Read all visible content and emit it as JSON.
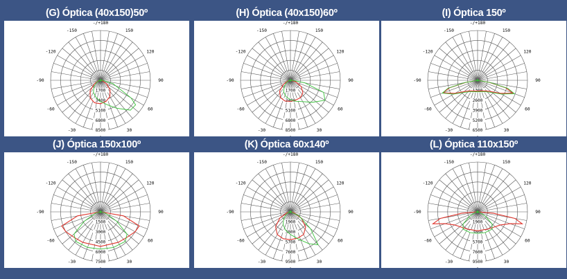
{
  "colors": {
    "background": "#3c5585",
    "plot_bg": "#ffffff",
    "red_series": "#e0342c",
    "green_series": "#39c23a"
  },
  "chart_data": [
    {
      "type": "polar",
      "title": "(G) Óptica (40x150)50º",
      "angle_labels": [
        "-/+180",
        "150",
        "120",
        "90",
        "60",
        "30",
        "0",
        "-30",
        "-60",
        "-90",
        "-120",
        "-150"
      ],
      "radial_ticks": [
        "1700",
        "3400",
        "5100",
        "6800",
        "8500"
      ],
      "rmax": 8500,
      "series": [
        {
          "color": "red",
          "points": [
            [
              -90,
              0
            ],
            [
              -75,
              400
            ],
            [
              -60,
              1200
            ],
            [
              -45,
              2500
            ],
            [
              -30,
              3500
            ],
            [
              -15,
              3950
            ],
            [
              0,
              4000
            ],
            [
              15,
              3700
            ],
            [
              30,
              3200
            ],
            [
              45,
              2300
            ],
            [
              60,
              1200
            ],
            [
              75,
              400
            ],
            [
              90,
              0
            ]
          ]
        },
        {
          "color": "green",
          "points": [
            [
              -90,
              0
            ],
            [
              -75,
              300
            ],
            [
              -60,
              800
            ],
            [
              -45,
              1600
            ],
            [
              -30,
              2400
            ],
            [
              -15,
              3000
            ],
            [
              0,
              3600
            ],
            [
              15,
              4300
            ],
            [
              30,
              5500
            ],
            [
              45,
              7200
            ],
            [
              55,
              7300
            ],
            [
              60,
              6000
            ],
            [
              75,
              2200
            ],
            [
              90,
              300
            ]
          ]
        }
      ]
    },
    {
      "type": "polar",
      "title": "(H) Óptica (40x150)60º",
      "angle_labels": [
        "-/+180",
        "150",
        "120",
        "90",
        "60",
        "30",
        "0",
        "-30",
        "-60",
        "-90",
        "-120",
        "-150"
      ],
      "radial_ticks": [
        "1700",
        "3400",
        "5100",
        "6800",
        "8500"
      ],
      "rmax": 8500,
      "series": [
        {
          "color": "red",
          "points": [
            [
              -90,
              0
            ],
            [
              -75,
              500
            ],
            [
              -60,
              1400
            ],
            [
              -45,
              2600
            ],
            [
              -30,
              3400
            ],
            [
              -15,
              3650
            ],
            [
              0,
              3600
            ],
            [
              15,
              3500
            ],
            [
              30,
              3400
            ],
            [
              45,
              3000
            ],
            [
              60,
              2100
            ],
            [
              75,
              900
            ],
            [
              90,
              100
            ]
          ]
        },
        {
          "color": "green",
          "points": [
            [
              -90,
              0
            ],
            [
              -75,
              300
            ],
            [
              -60,
              800
            ],
            [
              -45,
              1500
            ],
            [
              -30,
              2300
            ],
            [
              -15,
              2900
            ],
            [
              0,
              3300
            ],
            [
              15,
              3700
            ],
            [
              30,
              4200
            ],
            [
              45,
              5300
            ],
            [
              60,
              6800
            ],
            [
              70,
              6000
            ],
            [
              80,
              2500
            ],
            [
              90,
              300
            ]
          ]
        }
      ]
    },
    {
      "type": "polar",
      "title": "(I) Óptica 150º",
      "angle_labels": [
        "-/+180",
        "150",
        "120",
        "90",
        "60",
        "30",
        "0",
        "-30",
        "-60",
        "-90",
        "-120",
        "-150"
      ],
      "radial_ticks": [
        "1300",
        "2600",
        "3900",
        "5200",
        "6500"
      ],
      "rmax": 6500,
      "series": [
        {
          "color": "red",
          "points": [
            [
              -90,
              0
            ],
            [
              -80,
              1500
            ],
            [
              -75,
              3800
            ],
            [
              -70,
              4800
            ],
            [
              -60,
              3400
            ],
            [
              -45,
              2000
            ],
            [
              -30,
              1600
            ],
            [
              0,
              1400
            ],
            [
              30,
              1600
            ],
            [
              45,
              2000
            ],
            [
              60,
              3400
            ],
            [
              70,
              4900
            ],
            [
              75,
              3800
            ],
            [
              80,
              1500
            ],
            [
              90,
              0
            ]
          ]
        },
        {
          "color": "green",
          "points": [
            [
              -90,
              0
            ],
            [
              -80,
              1700
            ],
            [
              -75,
              4000
            ],
            [
              -70,
              4900
            ],
            [
              -60,
              3600
            ],
            [
              -45,
              2200
            ],
            [
              -30,
              1700
            ],
            [
              0,
              1500
            ],
            [
              30,
              1700
            ],
            [
              45,
              2200
            ],
            [
              60,
              3600
            ],
            [
              70,
              5100
            ],
            [
              75,
              4100
            ],
            [
              80,
              1700
            ],
            [
              90,
              0
            ]
          ]
        }
      ]
    },
    {
      "type": "polar",
      "title": "(J) Óptica 150x100º",
      "angle_labels": [
        "-/+180",
        "150",
        "120",
        "90",
        "60",
        "30",
        "0",
        "-30",
        "-60",
        "-90",
        "-120",
        "-150"
      ],
      "radial_ticks": [
        "1500",
        "3000",
        "4500",
        "6000",
        "7500"
      ],
      "rmax": 7500,
      "series": [
        {
          "color": "red",
          "points": [
            [
              -90,
              0
            ],
            [
              -80,
              3500
            ],
            [
              -70,
              6200
            ],
            [
              -60,
              6000
            ],
            [
              -45,
              5500
            ],
            [
              -30,
              5300
            ],
            [
              0,
              5200
            ],
            [
              30,
              5300
            ],
            [
              45,
              5500
            ],
            [
              60,
              6000
            ],
            [
              70,
              6200
            ],
            [
              80,
              3500
            ],
            [
              90,
              0
            ]
          ]
        },
        {
          "color": "green",
          "points": [
            [
              -90,
              0
            ],
            [
              -75,
              800
            ],
            [
              -60,
              2800
            ],
            [
              -50,
              5200
            ],
            [
              -40,
              5800
            ],
            [
              -20,
              5700
            ],
            [
              0,
              5600
            ],
            [
              20,
              5700
            ],
            [
              40,
              5800
            ],
            [
              50,
              5200
            ],
            [
              60,
              2800
            ],
            [
              75,
              800
            ],
            [
              90,
              0
            ]
          ]
        }
      ]
    },
    {
      "type": "polar",
      "title": "(K) Óptica 60x140º",
      "angle_labels": [
        "-/+180",
        "150",
        "120",
        "90",
        "60",
        "30",
        "0",
        "-30",
        "-60",
        "-90",
        "-120",
        "-150"
      ],
      "radial_ticks": [
        "1900",
        "3800",
        "5700",
        "7600",
        "9500"
      ],
      "rmax": 9500,
      "series": [
        {
          "color": "red",
          "points": [
            [
              -90,
              0
            ],
            [
              -75,
              700
            ],
            [
              -60,
              2300
            ],
            [
              -45,
              4000
            ],
            [
              -30,
              5000
            ],
            [
              -15,
              5300
            ],
            [
              0,
              5300
            ],
            [
              15,
              5200
            ],
            [
              30,
              5000
            ],
            [
              45,
              4100
            ],
            [
              60,
              2400
            ],
            [
              75,
              700
            ],
            [
              90,
              0
            ]
          ]
        },
        {
          "color": "green",
          "points": [
            [
              -90,
              0
            ],
            [
              -75,
              300
            ],
            [
              -60,
              900
            ],
            [
              -45,
              1800
            ],
            [
              -30,
              2800
            ],
            [
              -15,
              3600
            ],
            [
              0,
              4300
            ],
            [
              15,
              5300
            ],
            [
              30,
              7000
            ],
            [
              40,
              8200
            ],
            [
              50,
              5000
            ],
            [
              65,
              1800
            ],
            [
              90,
              0
            ]
          ]
        }
      ]
    },
    {
      "type": "polar",
      "title": "(L) Óptica 110x150º",
      "angle_labels": [
        "-/+180",
        "150",
        "120",
        "90",
        "60",
        "30",
        "0",
        "-30",
        "-60",
        "-90",
        "-120",
        "-150"
      ],
      "radial_ticks": [
        "1900",
        "3800",
        "5700",
        "7600",
        "9500"
      ],
      "rmax": 9500,
      "series": [
        {
          "color": "red",
          "points": [
            [
              -90,
              0
            ],
            [
              -85,
              3000
            ],
            [
              -80,
              7200
            ],
            [
              -75,
              8800
            ],
            [
              -70,
              6600
            ],
            [
              -60,
              5000
            ],
            [
              -45,
              4200
            ],
            [
              -30,
              3800
            ],
            [
              0,
              3600
            ],
            [
              30,
              3800
            ],
            [
              45,
              4200
            ],
            [
              60,
              5000
            ],
            [
              70,
              6600
            ],
            [
              75,
              8800
            ],
            [
              80,
              7200
            ],
            [
              85,
              3000
            ],
            [
              90,
              0
            ]
          ]
        },
        {
          "color": "green",
          "points": [
            [
              -90,
              0
            ],
            [
              -75,
              500
            ],
            [
              -60,
              1800
            ],
            [
              -50,
              3600
            ],
            [
              -40,
              4300
            ],
            [
              -20,
              4200
            ],
            [
              0,
              4100
            ],
            [
              20,
              4200
            ],
            [
              40,
              4300
            ],
            [
              50,
              3600
            ],
            [
              60,
              1800
            ],
            [
              75,
              500
            ],
            [
              90,
              0
            ]
          ]
        }
      ]
    }
  ]
}
